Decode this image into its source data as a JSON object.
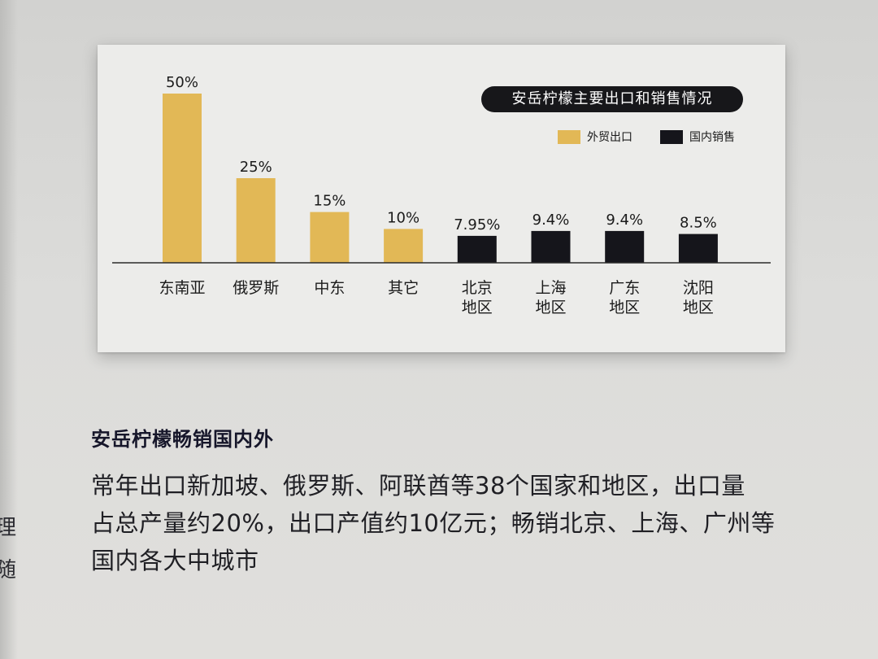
{
  "chart_data": {
    "type": "bar",
    "title": "安岳柠檬主要出口和销售情况",
    "categories": [
      "东南亚",
      "俄罗斯",
      "中东",
      "其它",
      "北京\n地区",
      "上海\n地区",
      "广东\n地区",
      "沈阳\n地区"
    ],
    "values": [
      50,
      25,
      15,
      10,
      7.95,
      9.4,
      9.4,
      8.5
    ],
    "value_labels": [
      "50%",
      "25%",
      "15%",
      "10%",
      "7.95%",
      "9.4%",
      "9.4%",
      "8.5%"
    ],
    "series": [
      {
        "name": "外贸出口",
        "color": "#e2b856",
        "categories": [
          "东南亚",
          "俄罗斯",
          "中东",
          "其它"
        ]
      },
      {
        "name": "国内销售",
        "color": "#15151b",
        "categories": [
          "北京\n地区",
          "上海\n地区",
          "广东\n地区",
          "沈阳\n地区"
        ]
      }
    ],
    "bar_series": [
      0,
      0,
      0,
      0,
      1,
      1,
      1,
      1
    ],
    "legend_position": "top-right",
    "grid": false,
    "ylim": [
      0,
      50
    ]
  },
  "article": {
    "heading": "安岳柠檬畅销国内外",
    "lines": [
      "常年出口新加坡、俄罗斯、阿联酋等38个国家和地区，出口量",
      "占总产量约20%，出口产值约10亿元；畅销北京、上海、广州等",
      "国内各大中城市"
    ]
  },
  "edge_fragments": [
    "理",
    "随"
  ]
}
